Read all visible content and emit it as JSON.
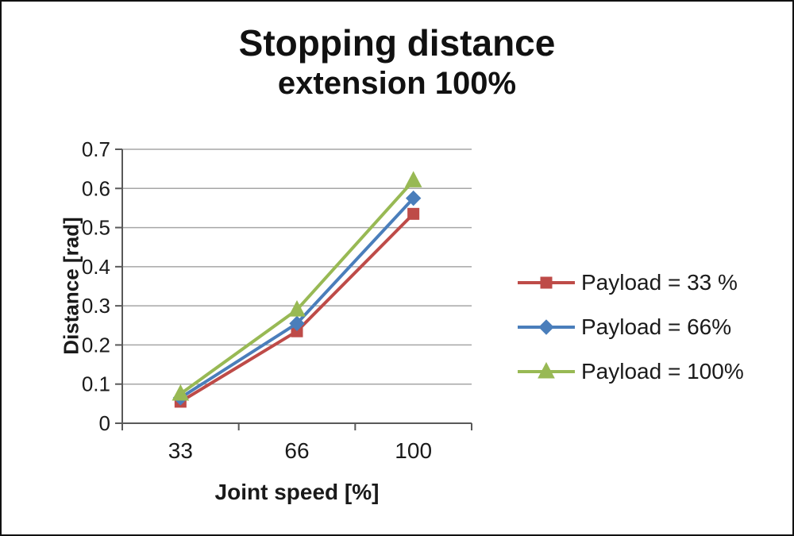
{
  "chart_data": {
    "type": "line",
    "title_line1": "Stopping distance",
    "title_line2": "extension 100%",
    "xlabel": "Joint speed [%]",
    "ylabel": "Distance [rad]",
    "categories": [
      "33",
      "66",
      "100"
    ],
    "ylim": [
      0,
      0.7
    ],
    "y_ticks": [
      0,
      0.1,
      0.2,
      0.3,
      0.4,
      0.5,
      0.6,
      0.7
    ],
    "y_tick_labels": [
      "0",
      "0.1",
      "0.2",
      "0.3",
      "0.4",
      "0.5",
      "0.6",
      "0.7"
    ],
    "grid": "horizontal",
    "legend_position": "right",
    "colors": {
      "axis": "#595959",
      "gridline": "#a6a6a6"
    },
    "series": [
      {
        "name": "Payload = 33 %",
        "color": "#be4b48",
        "marker": "square",
        "values": [
          0.055,
          0.235,
          0.535
        ]
      },
      {
        "name": "Payload =  66%",
        "color": "#4a7ebb",
        "marker": "diamond",
        "values": [
          0.065,
          0.255,
          0.575
        ]
      },
      {
        "name": "Payload =  100%",
        "color": "#98b954",
        "marker": "triangle",
        "values": [
          0.075,
          0.29,
          0.62
        ]
      }
    ]
  }
}
